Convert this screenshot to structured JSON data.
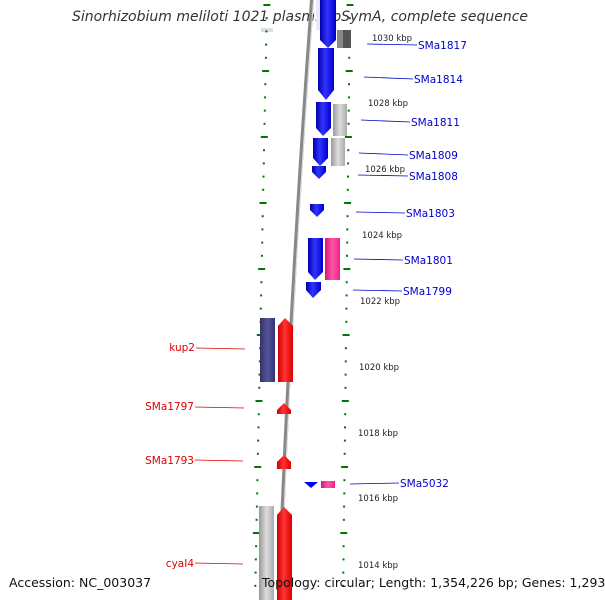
{
  "title": "Sinorhizobium meliloti 1021 plasmid pSymA, complete sequence",
  "footer": {
    "accession": "Accession: NC_003037",
    "topology": "Topology: circular; Length: 1,354,226 bp; Genes: 1,293"
  },
  "colors": {
    "forward_gene": "#0000ff",
    "reverse_gene": "#ff0000",
    "forward_label": "#0000cc",
    "reverse_label": "#dd0000",
    "rna_pink": "#ff3399",
    "cog_gray": "#bbbbbb",
    "cog_dark": "#444477",
    "tick_green": "#007700",
    "backbone": "#888888"
  },
  "kbp_marks": [
    "1030 kbp",
    "1028 kbp",
    "1026 kbp",
    "1024 kbp",
    "1022 kbp",
    "1020 kbp",
    "1018 kbp",
    "1016 kbp",
    "1014 kbp"
  ],
  "forward_genes": [
    "SMa1817",
    "SMa1814",
    "SMa1811",
    "SMa1809",
    "SMa1808",
    "SMa1803",
    "SMa1801",
    "SMa1799",
    "SMa5032"
  ],
  "reverse_genes": [
    "kup2",
    "SMa1797",
    "SMa1793",
    "cyaI4"
  ]
}
